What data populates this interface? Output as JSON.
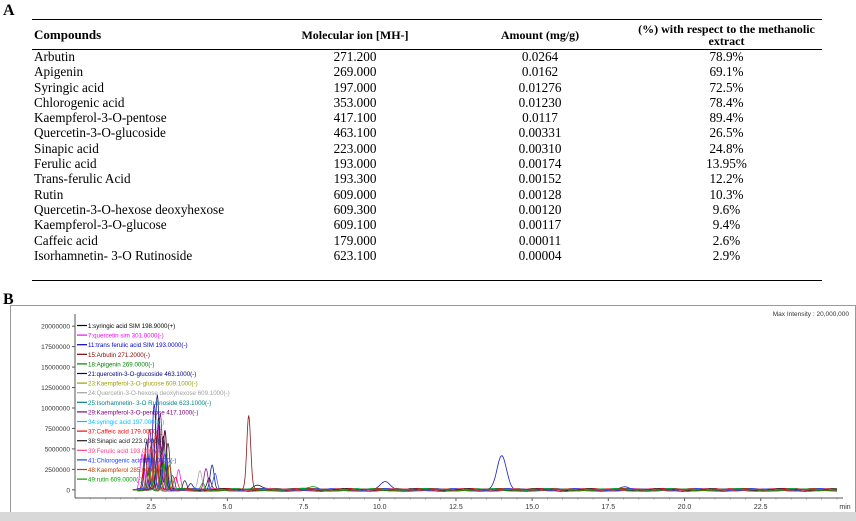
{
  "panel_a_label": "A",
  "panel_b_label": "B",
  "table": {
    "headers": [
      "Compounds",
      "Molecular ion [MH-]",
      "Amount (mg/g)",
      "(%) with respect to the methanolic extract"
    ],
    "rows": [
      [
        "Arbutin",
        "271.200",
        "0.0264",
        "78.9%"
      ],
      [
        "Apigenin",
        "269.000",
        "0.0162",
        "69.1%"
      ],
      [
        "Syringic acid",
        "197.000",
        "0.01276",
        "72.5%"
      ],
      [
        "Chlorogenic acid",
        "353.000",
        "0.01230",
        "78.4%"
      ],
      [
        "Kaempferol-3-O-pentose",
        "417.100",
        "0.0117",
        "89.4%"
      ],
      [
        "Quercetin-3-O-glucoside",
        "463.100",
        "0.00331",
        "26.5%"
      ],
      [
        "Sinapic acid",
        "223.000",
        "0.00310",
        "24.8%"
      ],
      [
        "Ferulic acid",
        "193.000",
        "0.00174",
        "13.95%"
      ],
      [
        "Trans-ferulic Acid",
        "193.300",
        "0.00152",
        "12.2%"
      ],
      [
        "Rutin",
        "609.000",
        "0.00128",
        "10.3%"
      ],
      [
        "Quercetin-3-O-hexose deoxyhexose",
        "609.300",
        "0.00120",
        "9.6%"
      ],
      [
        "Kaempferol-3-O-glucose",
        "609.100",
        "0.00117",
        "9.4%"
      ],
      [
        "Caffeic acid",
        "179.000",
        "0.00011",
        "2.6%"
      ],
      [
        "Isorhamnetin- 3-O Rutinoside",
        "623.100",
        "0.00004",
        "2.9%"
      ]
    ]
  },
  "chart_data": {
    "type": "line",
    "max_intensity_label": "Max Intensity : 20,000,000",
    "xlabel": "min",
    "xlim": [
      0,
      25.2
    ],
    "ylim": [
      -1000000,
      21000000
    ],
    "x_ticks": [
      "2.5",
      "5.0",
      "7.5",
      "10.0",
      "12.5",
      "15.0",
      "17.5",
      "20.0",
      "22.5"
    ],
    "y_ticks": [
      "20000000",
      "17500000",
      "15000000",
      "12500000",
      "10000000",
      "7500000",
      "5000000",
      "2500000",
      "0"
    ],
    "grid": false,
    "legend_placement": "top-left",
    "series": [
      {
        "name": "1:syringic acid SIM 198.9000(+)",
        "color": "#000000",
        "peaks": [
          [
            2.3,
            3800000
          ],
          [
            2.9,
            6500000
          ],
          [
            4.4,
            1400000
          ],
          [
            6.0,
            600000
          ]
        ]
      },
      {
        "name": "7:quercetin sim 301.0000(-)",
        "color": "#ff00ff",
        "peaks": [
          [
            2.2,
            4200000
          ],
          [
            2.75,
            8000000
          ],
          [
            3.4,
            2500000
          ]
        ]
      },
      {
        "name": "11:trans ferulic acid SIM 193.0000(-)",
        "color": "#0000c0",
        "peaks": [
          [
            2.6,
            10500000
          ],
          [
            2.95,
            7500000
          ],
          [
            3.8,
            600000
          ],
          [
            14.0,
            4000000
          ],
          [
            10.2,
            900000
          ],
          [
            18.0,
            200000
          ]
        ]
      },
      {
        "name": "15:Arbutin 271.2000(-)",
        "color": "#800000",
        "peaks": [
          [
            2.5,
            5500000
          ],
          [
            2.95,
            7200000
          ],
          [
            5.7,
            9000000
          ]
        ]
      },
      {
        "name": "18:Apigenin 269.0000(-)",
        "color": "#008000",
        "peaks": [
          [
            2.4,
            4000000
          ],
          [
            2.85,
            5200000
          ],
          [
            7.8,
            400000
          ]
        ]
      },
      {
        "name": "21:quercetin-3-O-glucoside 463.1000(-)",
        "color": "#000080",
        "peaks": [
          [
            2.35,
            6000000
          ],
          [
            2.7,
            11500000
          ],
          [
            4.5,
            3000000
          ]
        ]
      },
      {
        "name": "23:Kaempferol-3-O-glucose 609.1000(-)",
        "color": "#a0a000",
        "peaks": [
          [
            2.55,
            3200000
          ],
          [
            3.0,
            4200000
          ]
        ]
      },
      {
        "name": "24:Quercetin-3-O-hexose deoxyhexose 609.1000(-)",
        "color": "#a0a0a0",
        "peaks": [
          [
            2.65,
            3000000
          ],
          [
            4.1,
            2200000
          ]
        ]
      },
      {
        "name": "25:Isorhamnetin- 3-O Rutinoside 623.1000(-)",
        "color": "#008080",
        "peaks": [
          [
            2.7,
            2600000
          ],
          [
            3.2,
            1800000
          ]
        ]
      },
      {
        "name": "29:Kaempferol-3-O-pentose 417.1000(-)",
        "color": "#800080",
        "peaks": [
          [
            2.45,
            7500000
          ],
          [
            2.8,
            9500000
          ],
          [
            4.3,
            2600000
          ]
        ]
      },
      {
        "name": "34:syringic acid 197.0000(-)",
        "color": "#00c0ff",
        "peaks": [
          [
            2.6,
            2000000
          ],
          [
            2.9,
            2500000
          ]
        ]
      },
      {
        "name": "37:Caffeic acid 179.0000(-)",
        "color": "#ff0000",
        "peaks": [
          [
            2.3,
            4600000
          ],
          [
            2.65,
            6800000
          ],
          [
            3.3,
            1400000
          ]
        ]
      },
      {
        "name": "38:Sinapic acid 223.0000(-)",
        "color": "#202020",
        "peaks": [
          [
            2.75,
            8800000
          ],
          [
            3.05,
            5600000
          ],
          [
            3.6,
            1200000
          ]
        ]
      },
      {
        "name": "39:Ferulic acid 193.0000(-)",
        "color": "#ff4080",
        "peaks": [
          [
            2.4,
            3500000
          ],
          [
            2.85,
            4300000
          ]
        ]
      },
      {
        "name": "41:Chlorogenic acid 353.0000(-)",
        "color": "#2040ff",
        "peaks": [
          [
            2.55,
            6300000
          ],
          [
            2.95,
            4600000
          ],
          [
            4.6,
            2000000
          ]
        ]
      },
      {
        "name": "48:Kaempferol 285.0000(-)",
        "color": "#c04000",
        "peaks": [
          [
            2.65,
            4800000
          ],
          [
            3.1,
            3000000
          ]
        ]
      },
      {
        "name": "49:rutin 609.0000(-)",
        "color": "#00a000",
        "peaks": [
          [
            2.45,
            2300000
          ],
          [
            2.9,
            3200000
          ],
          [
            4.2,
            900000
          ]
        ]
      }
    ]
  }
}
